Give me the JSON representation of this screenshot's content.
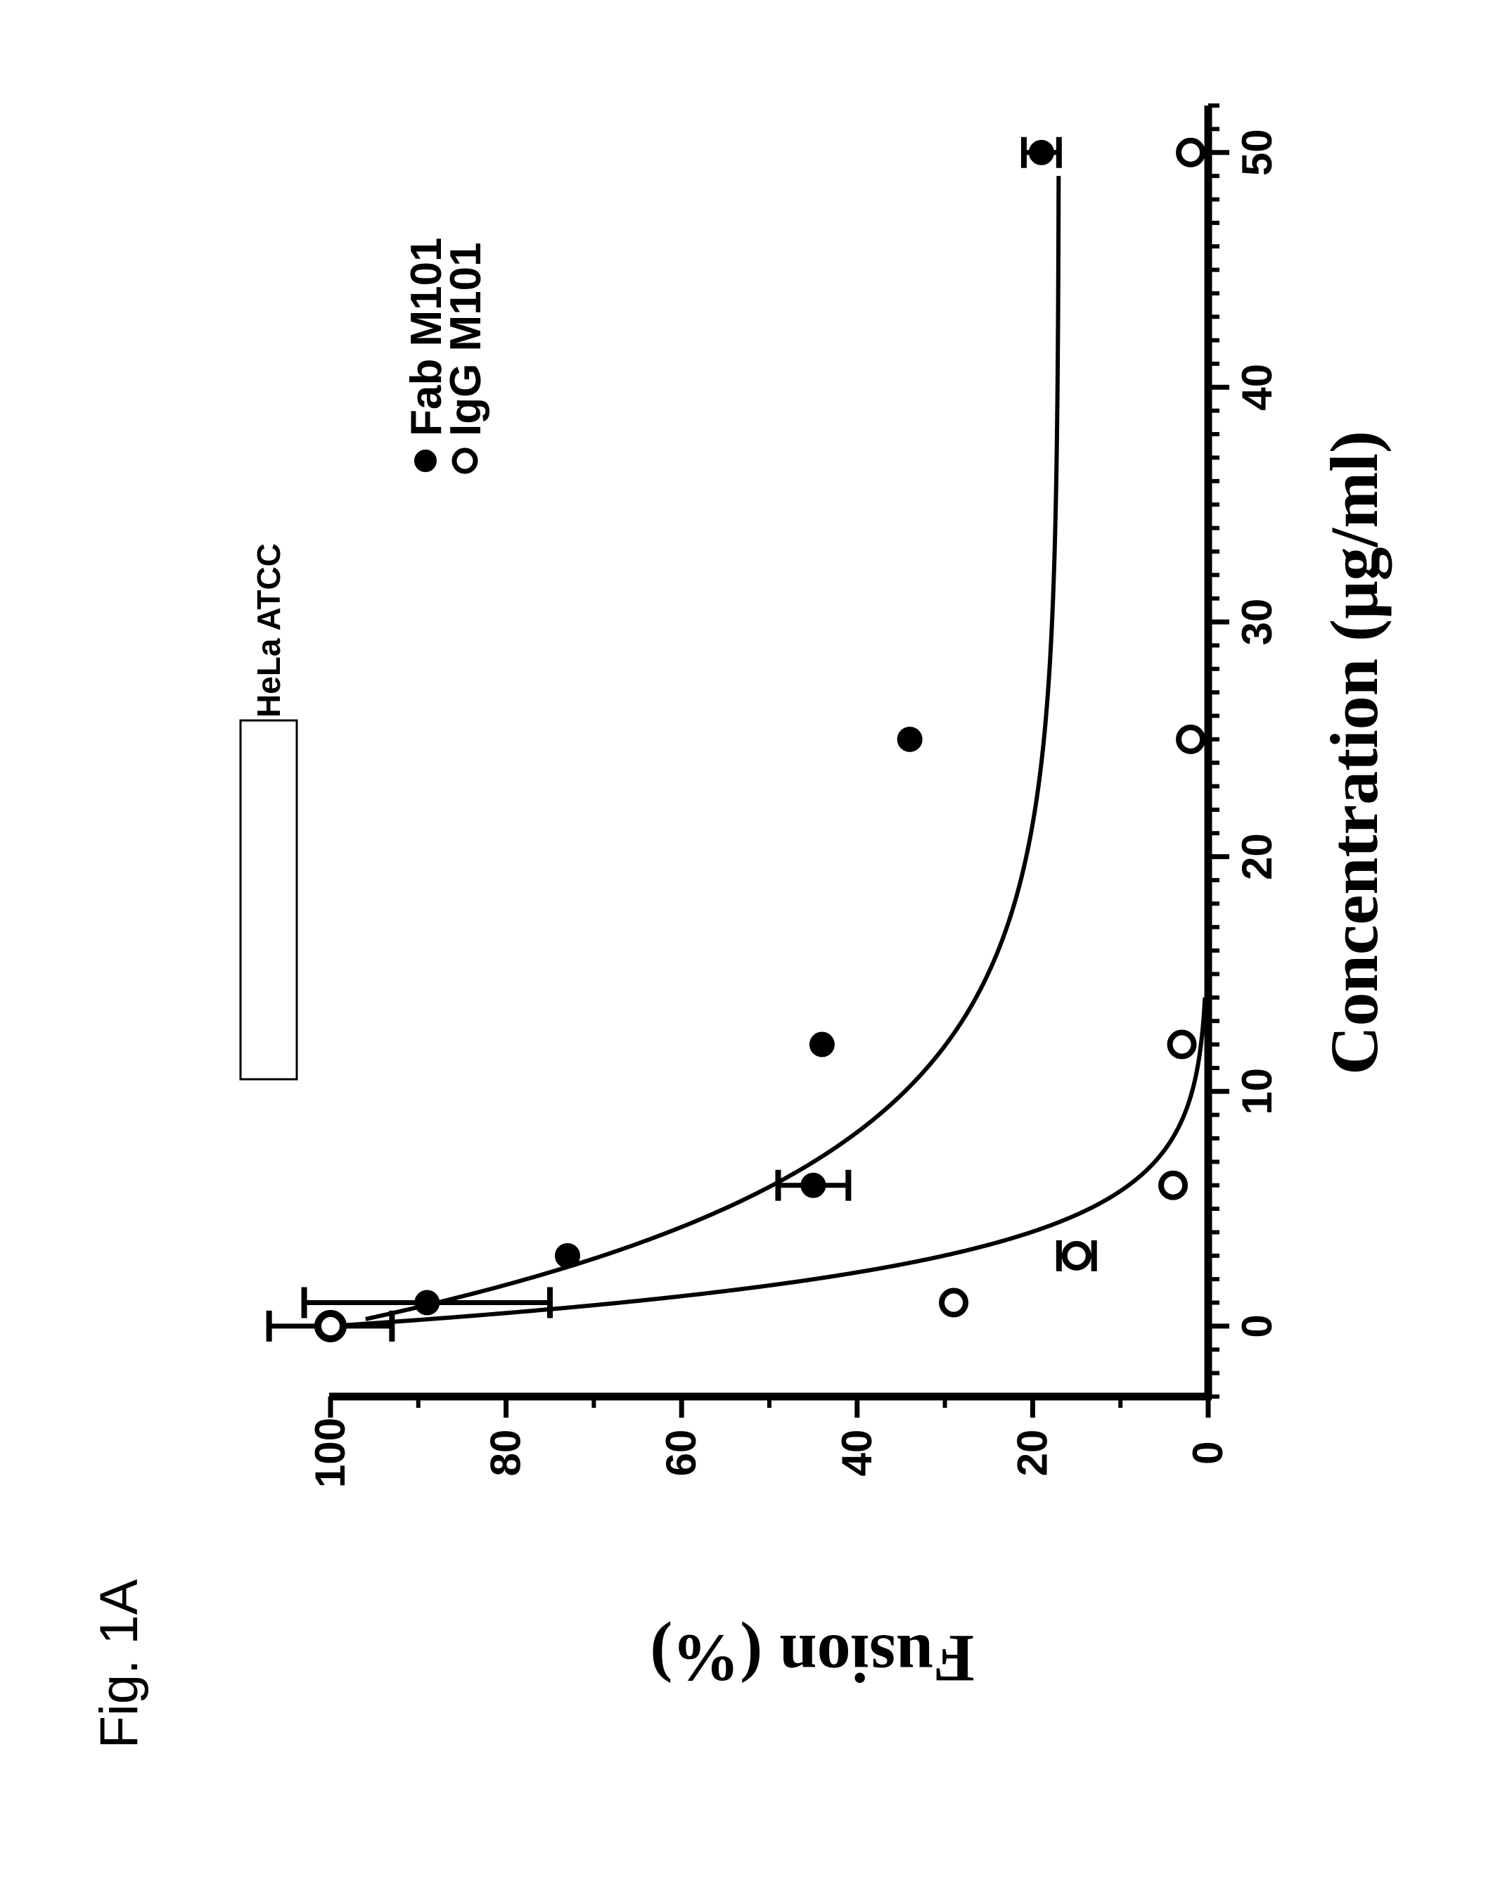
{
  "figure_label": "Fig. 1A",
  "chart_data": {
    "type": "scatter",
    "xlabel": "Concentration (μg/ml)",
    "ylabel": "Fusion (%)",
    "xlim": [
      -3,
      52
    ],
    "ylim": [
      0,
      100
    ],
    "x_ticks": [
      0,
      10,
      20,
      30,
      40,
      50
    ],
    "y_ticks": [
      0,
      20,
      40,
      60,
      80,
      100
    ],
    "inset_label": "HeLa ATCC",
    "legend_position": "top-right",
    "series": [
      {
        "name": "Fab M101",
        "marker": "filled-circle",
        "x": [
          0,
          1,
          3,
          6,
          12,
          25,
          50
        ],
        "y": [
          100,
          89,
          73,
          45,
          44,
          34,
          19
        ],
        "error": [
          7,
          14,
          0,
          4,
          0,
          0,
          2
        ],
        "fit": {
          "x0": 0.3,
          "x1": 49,
          "y0": 96,
          "yinf": 17,
          "k": 0.155
        }
      },
      {
        "name": "IgG M101",
        "marker": "open-circle",
        "x": [
          0,
          1,
          3,
          6,
          12,
          25,
          50
        ],
        "y": [
          100,
          29,
          15,
          4,
          3,
          2,
          2
        ],
        "error": [
          0,
          0,
          2,
          0,
          0,
          0,
          0
        ],
        "fit": {
          "x0": 0,
          "x1": 14,
          "y0": 100,
          "yinf": 0,
          "k": 0.4
        }
      }
    ]
  }
}
